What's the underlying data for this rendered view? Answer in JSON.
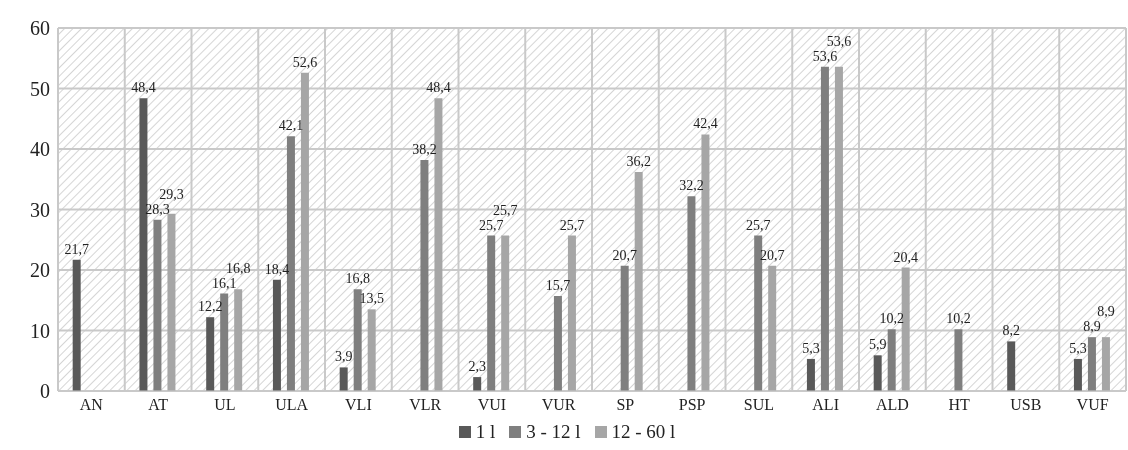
{
  "chart_data": {
    "type": "bar",
    "categories": [
      "AN",
      "AT",
      "UL",
      "ULA",
      "VLI",
      "VLR",
      "VUI",
      "VUR",
      "SP",
      "PSP",
      "SUL",
      "ALI",
      "ALD",
      "HT",
      "USB",
      "VUF"
    ],
    "series": [
      {
        "name": "1 l",
        "color": "#595959",
        "values": [
          21.7,
          48.4,
          12.2,
          18.4,
          3.9,
          null,
          2.3,
          null,
          null,
          null,
          null,
          5.3,
          5.9,
          null,
          8.2,
          5.3
        ],
        "value_labels": [
          "21,7",
          "48,4",
          "12,2",
          "18,4",
          "3,9",
          null,
          "2,3",
          null,
          null,
          null,
          null,
          "5,3",
          "5,9",
          null,
          "8,2",
          "5,3"
        ]
      },
      {
        "name": "3 - 12 l",
        "color": "#7f7f7f",
        "values": [
          null,
          28.3,
          16.1,
          42.1,
          16.8,
          38.2,
          25.7,
          15.7,
          20.7,
          32.2,
          25.7,
          53.6,
          10.2,
          10.2,
          null,
          8.9
        ],
        "value_labels": [
          null,
          "28,3",
          "16,1",
          "42,1",
          "16,8",
          "38,2",
          "25,7",
          "15,7",
          "20,7",
          "32,2",
          "25,7",
          "53,6",
          "10,2",
          "10,2",
          null,
          "8,9"
        ]
      },
      {
        "name": "12 - 60 l",
        "color": "#a6a6a6",
        "values": [
          null,
          29.3,
          16.8,
          52.6,
          13.5,
          48.4,
          25.7,
          25.7,
          36.2,
          42.4,
          20.7,
          53.6,
          20.4,
          null,
          null,
          8.9
        ],
        "value_labels": [
          null,
          "29,3",
          "16,8",
          "52,6",
          "13,5",
          "48,4",
          "25,7",
          "25,7",
          "36,2",
          "42,4",
          "20,7",
          "53,6",
          "20,4",
          null,
          null,
          "8,9"
        ]
      }
    ],
    "ylim": [
      0,
      60
    ],
    "yticks": [
      0,
      10,
      20,
      30,
      40,
      50,
      60
    ],
    "grid": true,
    "legend": "bottom"
  }
}
